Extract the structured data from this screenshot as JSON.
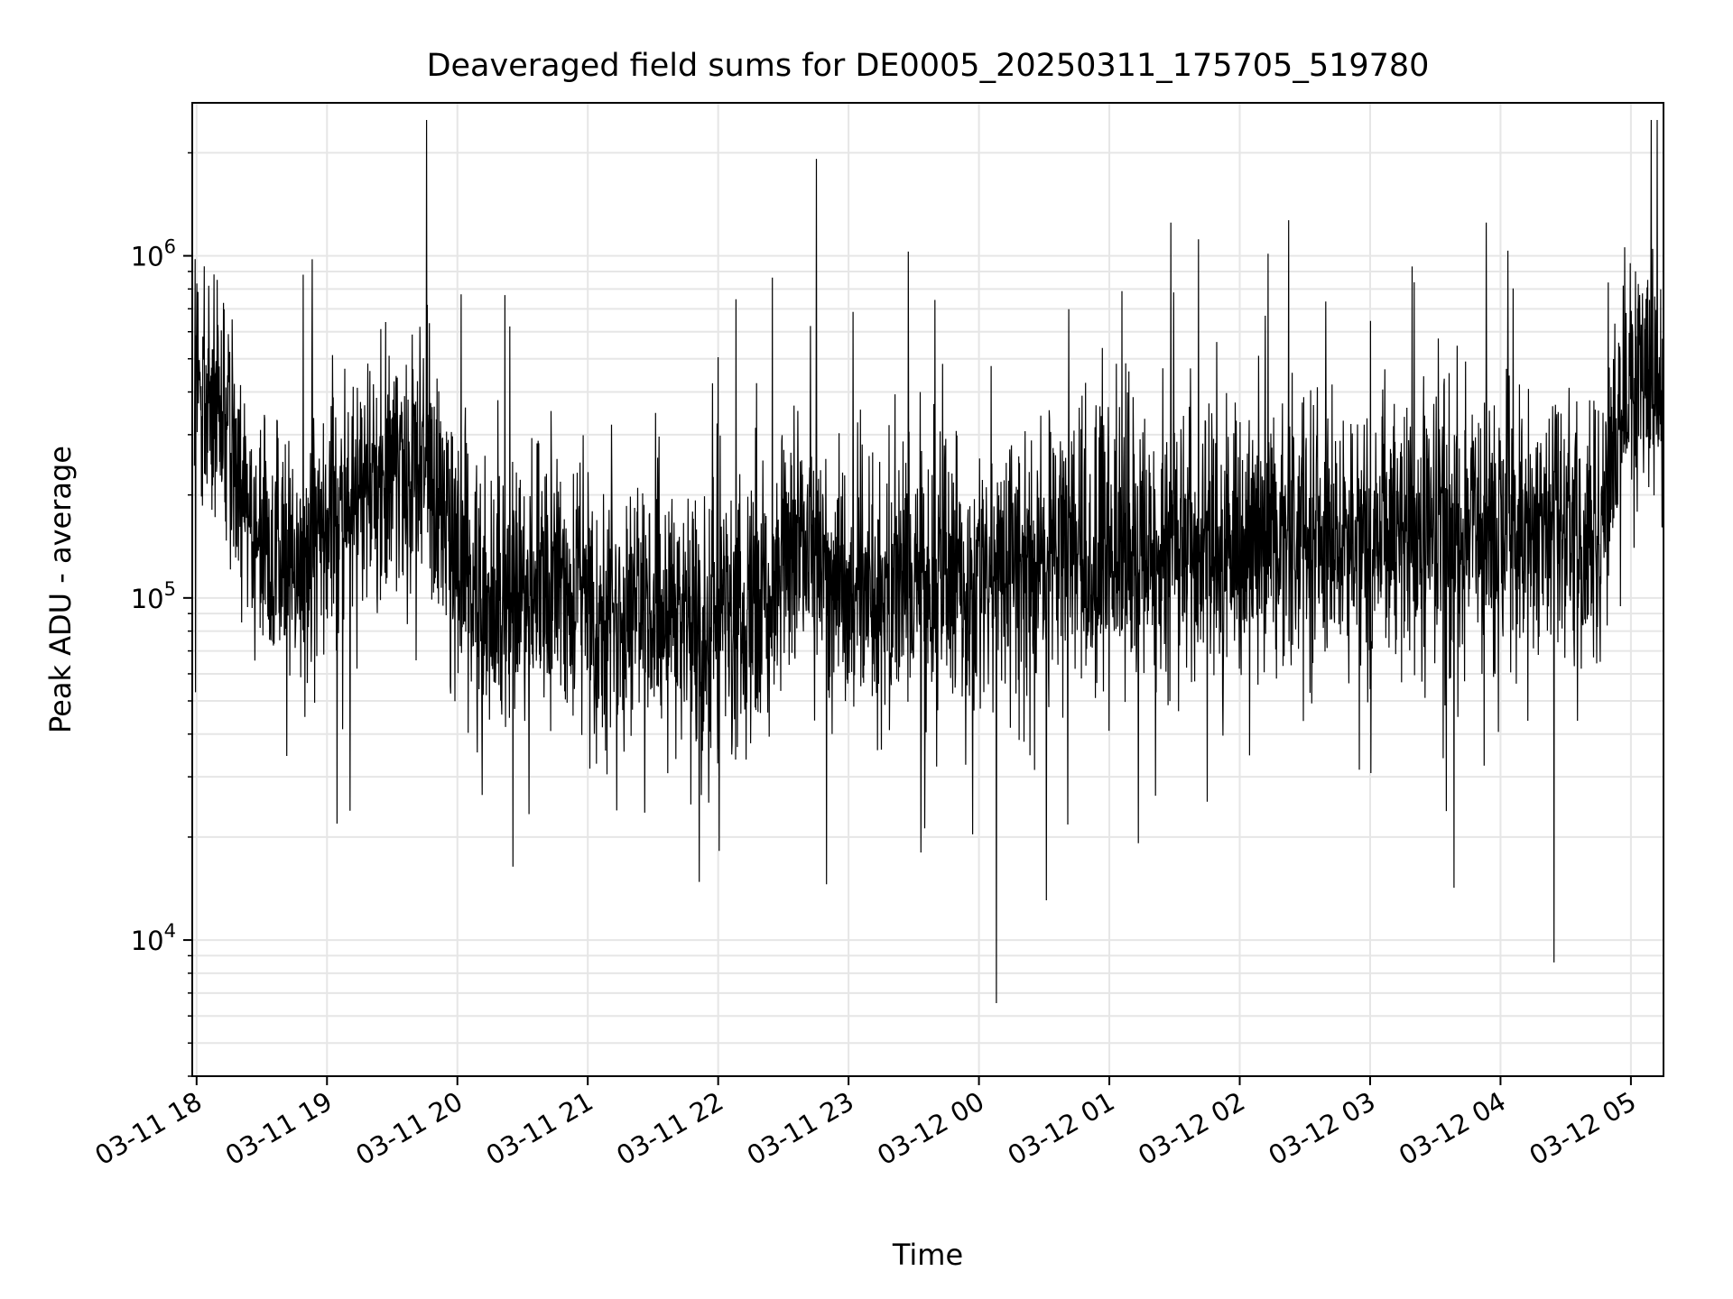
{
  "chart_data": {
    "type": "line",
    "title": "Deaveraged field sums for DE0005_20250311_175705_519780",
    "xlabel": "Time",
    "ylabel": "Peak ADU - average",
    "yscale": "log",
    "ylim": [
      4000,
      2800000
    ],
    "xlim": [
      "2025-03-11 17:58",
      "2025-03-12 05:15"
    ],
    "x_ticks": [
      "03-11 18",
      "03-11 19",
      "03-11 20",
      "03-11 21",
      "03-11 22",
      "03-11 23",
      "03-12 00",
      "03-12 01",
      "03-12 02",
      "03-12 03",
      "03-12 04",
      "03-12 05"
    ],
    "y_ticks": [
      {
        "value": 10000,
        "base": "10",
        "exp": "4"
      },
      {
        "value": 100000,
        "base": "10",
        "exp": "5"
      },
      {
        "value": 1000000,
        "base": "10",
        "exp": "6"
      }
    ],
    "grid": true,
    "line_color": "#000000",
    "series": [
      {
        "x": [
          "2025-03-11 18:00",
          "2025-03-11 18:15",
          "2025-03-11 18:30",
          "2025-03-11 18:45",
          "2025-03-11 19:00",
          "2025-03-11 19:15",
          "2025-03-11 19:30",
          "2025-03-11 19:45",
          "2025-03-11 20:00",
          "2025-03-11 20:15",
          "2025-03-11 20:30",
          "2025-03-11 20:45",
          "2025-03-11 21:00",
          "2025-03-11 21:15",
          "2025-03-11 21:30",
          "2025-03-11 21:45",
          "2025-03-11 22:00",
          "2025-03-11 22:15",
          "2025-03-11 22:30",
          "2025-03-11 22:45",
          "2025-03-11 23:00",
          "2025-03-11 23:15",
          "2025-03-11 23:30",
          "2025-03-11 23:45",
          "2025-03-12 00:00",
          "2025-03-12 00:15",
          "2025-03-12 00:30",
          "2025-03-12 00:45",
          "2025-03-12 01:00",
          "2025-03-12 01:15",
          "2025-03-12 01:30",
          "2025-03-12 01:45",
          "2025-03-12 02:00",
          "2025-03-12 02:15",
          "2025-03-12 02:30",
          "2025-03-12 02:45",
          "2025-03-12 03:00",
          "2025-03-12 03:15",
          "2025-03-12 03:30",
          "2025-03-12 03:45",
          "2025-03-12 04:00",
          "2025-03-12 04:15",
          "2025-03-12 04:30",
          "2025-03-12 04:45",
          "2025-03-12 05:00",
          "2025-03-12 05:15"
        ],
        "values": [
          400000,
          300000,
          150000,
          120000,
          180000,
          200000,
          230000,
          250000,
          140000,
          95000,
          100000,
          110000,
          100000,
          85000,
          90000,
          88000,
          90000,
          95000,
          120000,
          130000,
          110000,
          110000,
          115000,
          110000,
          120000,
          125000,
          130000,
          135000,
          140000,
          125000,
          135000,
          130000,
          145000,
          150000,
          155000,
          150000,
          155000,
          160000,
          165000,
          160000,
          155000,
          160000,
          165000,
          150000,
          420000,
          450000
        ]
      }
    ]
  }
}
